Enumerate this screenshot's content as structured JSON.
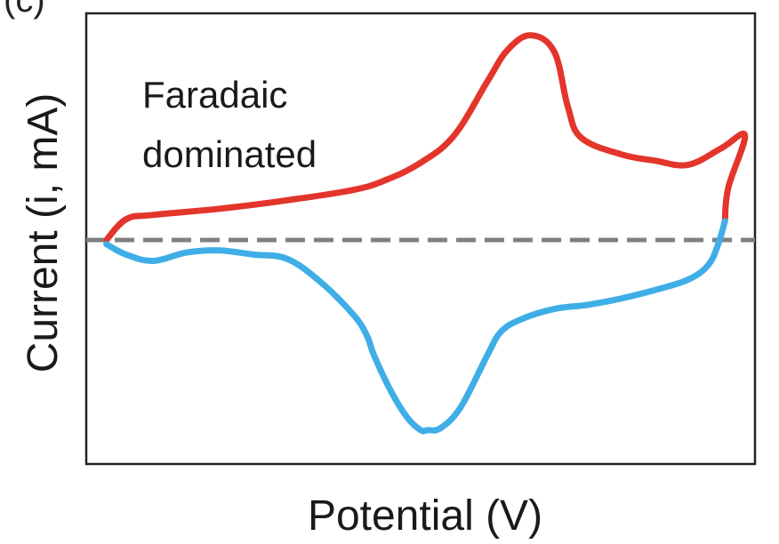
{
  "panel_label": "(c)",
  "chart_data": {
    "type": "line",
    "title": "",
    "xlabel": "Potential (V)",
    "ylabel": "Current (i, mA)",
    "annotation": [
      "Faradaic",
      "dominated"
    ],
    "xlim": [
      0,
      1
    ],
    "ylim": [
      -1,
      1
    ],
    "grid": false,
    "legend": "none",
    "zero_line": {
      "y": 0,
      "style": "dashed",
      "color": "#808080"
    },
    "series": [
      {
        "color": "#e3352b",
        "x": [
          0.03,
          0.06,
          0.1,
          0.2,
          0.3,
          0.4,
          0.45,
          0.5,
          0.55,
          0.6,
          0.63,
          0.665,
          0.7,
          0.72,
          0.74,
          0.8,
          0.85,
          0.9,
          0.95,
          0.985,
          0.96,
          0.955
        ],
        "y": [
          0.0,
          0.1,
          0.12,
          0.15,
          0.19,
          0.24,
          0.29,
          0.37,
          0.5,
          0.76,
          0.91,
          0.98,
          0.9,
          0.64,
          0.49,
          0.41,
          0.38,
          0.36,
          0.44,
          0.5,
          0.25,
          0.09
        ]
      },
      {
        "color": "#3faee6",
        "x": [
          0.955,
          0.945,
          0.93,
          0.9,
          0.85,
          0.8,
          0.75,
          0.7,
          0.65,
          0.62,
          0.6,
          0.56,
          0.53,
          0.51,
          0.5,
          0.48,
          0.455,
          0.43,
          0.42,
          0.4,
          0.35,
          0.3,
          0.25,
          0.2,
          0.15,
          0.1,
          0.06,
          0.03
        ],
        "y": [
          0.09,
          -0.02,
          -0.12,
          -0.19,
          -0.24,
          -0.28,
          -0.31,
          -0.33,
          -0.38,
          -0.44,
          -0.55,
          -0.8,
          -0.9,
          -0.91,
          -0.91,
          -0.85,
          -0.72,
          -0.55,
          -0.46,
          -0.36,
          -0.2,
          -0.09,
          -0.07,
          -0.05,
          -0.06,
          -0.1,
          -0.07,
          -0.02
        ]
      }
    ]
  }
}
